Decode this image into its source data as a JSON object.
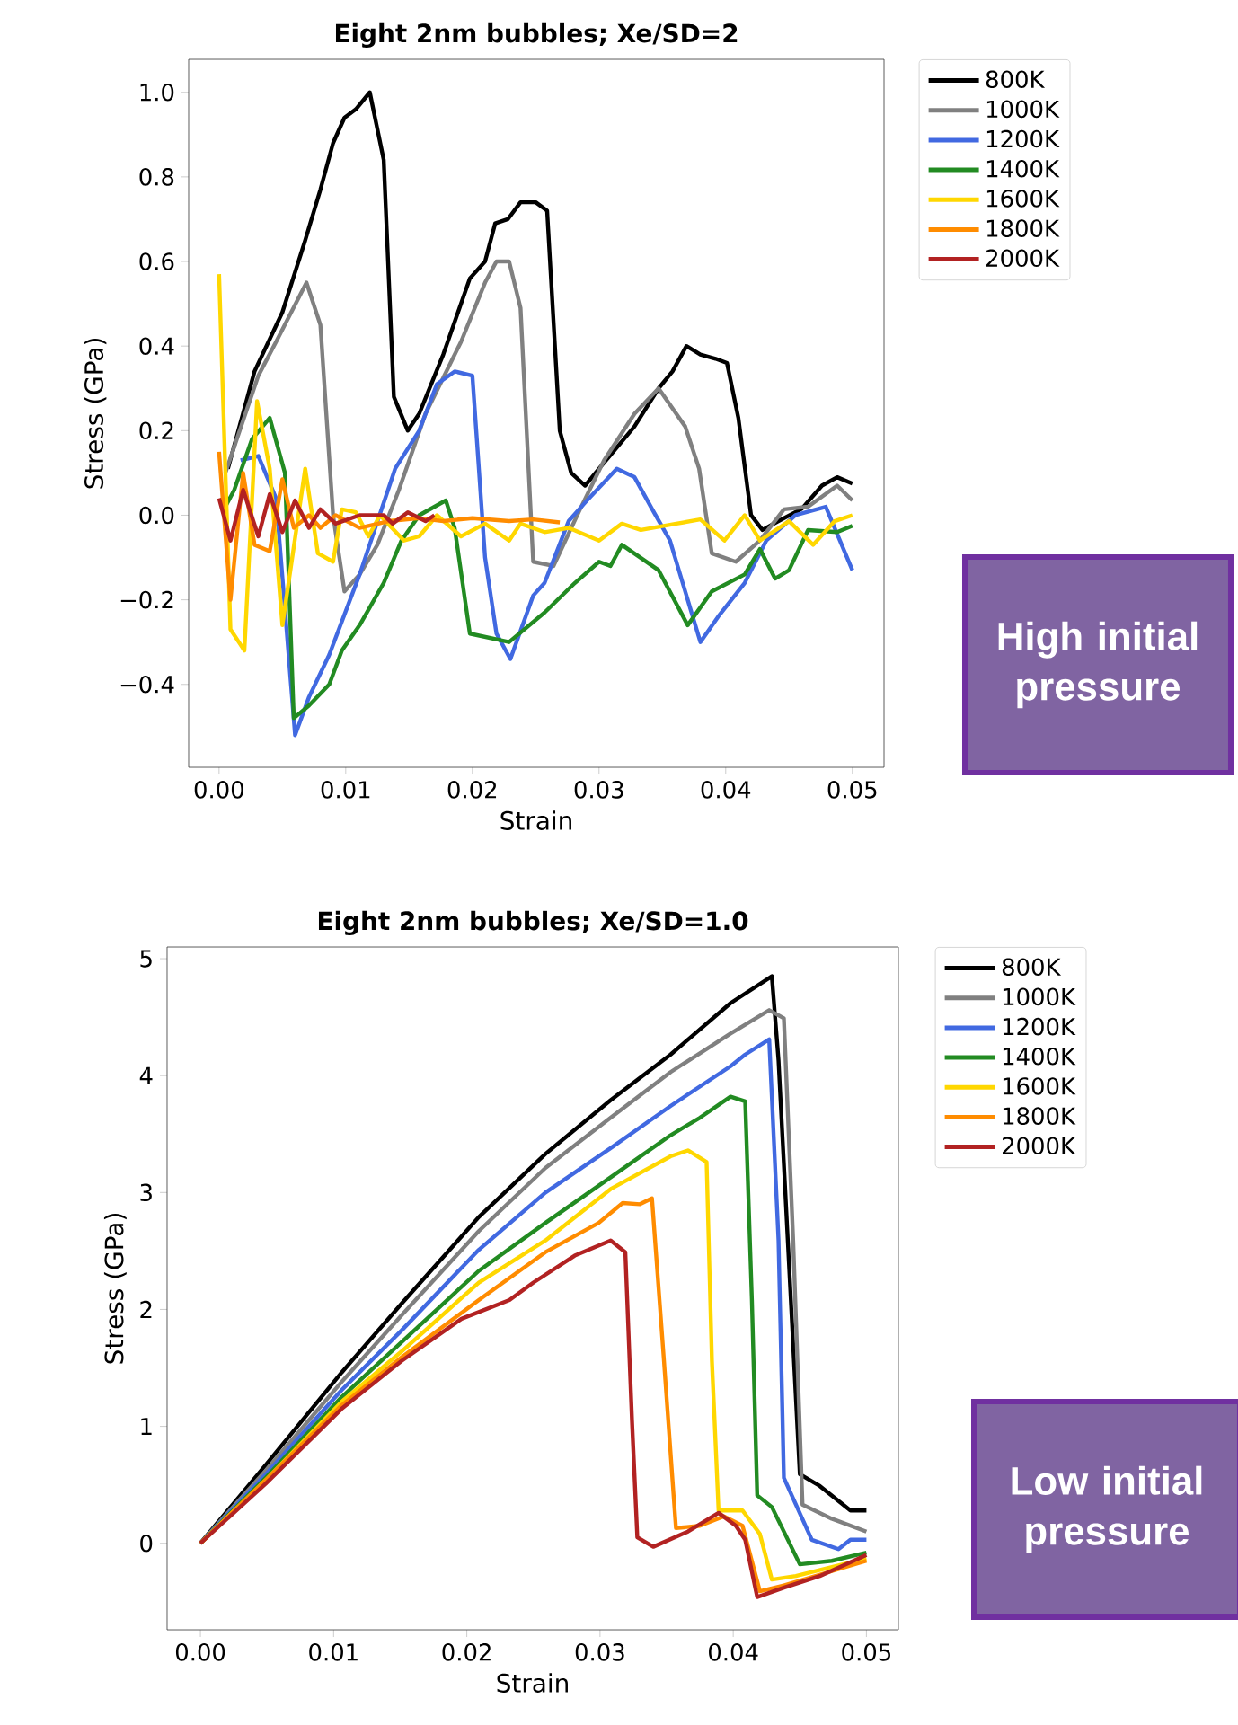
{
  "chart_data": [
    {
      "type": "line",
      "title": "Eight 2nm bubbles; Xe/SD=2",
      "xlabel": "Strain",
      "ylabel": "Stress (GPa)",
      "legend": "right",
      "xlim": [
        -0.0024,
        0.0525
      ],
      "ylim": [
        -0.596,
        1.078
      ],
      "xticks": [
        {
          "value": 0,
          "label": "0.00"
        },
        {
          "value": 0.01,
          "label": "0.01"
        },
        {
          "value": 0.02,
          "label": "0.02"
        },
        {
          "value": 0.03,
          "label": "0.03"
        },
        {
          "value": 0.04,
          "label": "0.04"
        },
        {
          "value": 0.05,
          "label": "0.05"
        }
      ],
      "yticks": [
        {
          "value": -0.4,
          "label": "−0.4"
        },
        {
          "value": -0.2,
          "label": "−0.2"
        },
        {
          "value": 0,
          "label": "0.0"
        },
        {
          "value": 0.2,
          "label": "0.2"
        },
        {
          "value": 0.4,
          "label": "0.4"
        },
        {
          "value": 0.6,
          "label": "0.6"
        },
        {
          "value": 0.8,
          "label": "0.8"
        },
        {
          "value": 1.0,
          "label": "1.0"
        }
      ],
      "annotations": [
        "High initial pressure"
      ],
      "series": [
        {
          "name": "800K",
          "color": "#000000",
          "x": [
            0.0007,
            0.0028,
            0.005,
            0.0068,
            0.008,
            0.009,
            0.0099,
            0.0108,
            0.0119,
            0.013,
            0.0138,
            0.0149,
            0.0158,
            0.0177,
            0.0198,
            0.021,
            0.0218,
            0.0228,
            0.0238,
            0.025,
            0.0259,
            0.0269,
            0.0278,
            0.0289,
            0.03,
            0.0328,
            0.0347,
            0.0358,
            0.0369,
            0.038,
            0.0392,
            0.0401,
            0.041,
            0.042,
            0.0429,
            0.0441,
            0.046,
            0.0476,
            0.0488,
            0.05
          ],
          "values": [
            0.11,
            0.34,
            0.48,
            0.65,
            0.77,
            0.88,
            0.94,
            0.96,
            1.0,
            0.84,
            0.28,
            0.2,
            0.24,
            0.38,
            0.56,
            0.6,
            0.69,
            0.7,
            0.74,
            0.74,
            0.72,
            0.2,
            0.1,
            0.07,
            0.11,
            0.21,
            0.3,
            0.34,
            0.4,
            0.38,
            0.37,
            0.36,
            0.23,
            0.0,
            -0.035,
            -0.015,
            0.015,
            0.07,
            0.09,
            0.075
          ]
        },
        {
          "name": "1000K",
          "color": "#808080",
          "x": [
            0.0005,
            0.0031,
            0.0045,
            0.0069,
            0.008,
            0.009,
            0.0099,
            0.0111,
            0.0125,
            0.0142,
            0.0163,
            0.0191,
            0.021,
            0.0219,
            0.0229,
            0.0238,
            0.0248,
            0.0264,
            0.0285,
            0.0304,
            0.0328,
            0.0347,
            0.0368,
            0.0379,
            0.0389,
            0.0408,
            0.0427,
            0.0446,
            0.0465,
            0.0488,
            0.05
          ],
          "values": [
            0.1,
            0.33,
            0.41,
            0.55,
            0.45,
            0.0,
            -0.18,
            -0.14,
            -0.07,
            0.06,
            0.24,
            0.41,
            0.55,
            0.6,
            0.6,
            0.49,
            -0.11,
            -0.12,
            0.014,
            0.13,
            0.24,
            0.3,
            0.21,
            0.11,
            -0.09,
            -0.11,
            -0.06,
            0.014,
            0.02,
            0.07,
            0.035
          ]
        },
        {
          "name": "1200K",
          "color": "#4169e1",
          "x": [
            0.0017,
            0.0031,
            0.0045,
            0.006,
            0.0071,
            0.0087,
            0.0111,
            0.0139,
            0.0158,
            0.0172,
            0.0186,
            0.02,
            0.021,
            0.0219,
            0.023,
            0.0248,
            0.0257,
            0.0276,
            0.0292,
            0.0314,
            0.0328,
            0.0342,
            0.0356,
            0.038,
            0.0394,
            0.0415,
            0.0432,
            0.0455,
            0.0479,
            0.0486,
            0.05
          ],
          "values": [
            0.13,
            0.14,
            0.04,
            -0.52,
            -0.43,
            -0.33,
            -0.14,
            0.11,
            0.2,
            0.31,
            0.34,
            0.33,
            -0.1,
            -0.28,
            -0.34,
            -0.19,
            -0.16,
            -0.014,
            0.04,
            0.11,
            0.09,
            0.014,
            -0.06,
            -0.3,
            -0.24,
            -0.16,
            -0.06,
            0.0,
            0.02,
            -0.03,
            -0.13
          ]
        },
        {
          "name": "1400K",
          "color": "#228b22",
          "x": [
            0.0005,
            0.0012,
            0.0026,
            0.004,
            0.0052,
            0.0059,
            0.0071,
            0.0087,
            0.0097,
            0.0111,
            0.013,
            0.0144,
            0.0158,
            0.0179,
            0.0186,
            0.0198,
            0.0229,
            0.0257,
            0.0281,
            0.03,
            0.0309,
            0.0318,
            0.0347,
            0.037,
            0.0389,
            0.0415,
            0.0427,
            0.0439,
            0.045,
            0.0465,
            0.0488,
            0.05
          ],
          "values": [
            0.02,
            0.06,
            0.18,
            0.23,
            0.1,
            -0.48,
            -0.45,
            -0.4,
            -0.32,
            -0.26,
            -0.16,
            -0.06,
            0.0,
            0.035,
            -0.03,
            -0.28,
            -0.3,
            -0.23,
            -0.16,
            -0.11,
            -0.12,
            -0.07,
            -0.13,
            -0.26,
            -0.18,
            -0.14,
            -0.08,
            -0.15,
            -0.13,
            -0.035,
            -0.04,
            -0.025
          ]
        },
        {
          "name": "1600K",
          "color": "#ffd700",
          "x": [
            0.0,
            0.0009,
            0.002,
            0.003,
            0.004,
            0.005,
            0.0068,
            0.0078,
            0.009,
            0.0097,
            0.0108,
            0.0118,
            0.0127,
            0.0146,
            0.0158,
            0.0172,
            0.0191,
            0.021,
            0.0229,
            0.0238,
            0.0257,
            0.0276,
            0.03,
            0.0318,
            0.0333,
            0.0361,
            0.038,
            0.0399,
            0.0415,
            0.0427,
            0.045,
            0.0469,
            0.0486,
            0.05
          ],
          "values": [
            0.57,
            -0.27,
            -0.32,
            0.27,
            0.11,
            -0.26,
            0.11,
            -0.09,
            -0.11,
            0.014,
            0.007,
            -0.05,
            0.0,
            -0.06,
            -0.05,
            0.0,
            -0.05,
            -0.02,
            -0.06,
            -0.02,
            -0.04,
            -0.03,
            -0.06,
            -0.02,
            -0.035,
            -0.02,
            -0.01,
            -0.06,
            0.0,
            -0.06,
            -0.014,
            -0.07,
            -0.014,
            0.0
          ]
        },
        {
          "name": "1800K",
          "color": "#ff8c00",
          "x": [
            0.0,
            0.0009,
            0.0019,
            0.0028,
            0.004,
            0.005,
            0.0059,
            0.0071,
            0.008,
            0.0092,
            0.0111,
            0.0134,
            0.0158,
            0.0177,
            0.02,
            0.0229,
            0.0248,
            0.0269
          ],
          "values": [
            0.15,
            -0.2,
            0.1,
            -0.07,
            -0.085,
            0.085,
            -0.03,
            0.0,
            -0.03,
            0.0,
            -0.03,
            -0.014,
            -0.007,
            -0.014,
            -0.007,
            -0.014,
            -0.01,
            -0.017
          ]
        },
        {
          "name": "2000K",
          "color": "#b22222",
          "x": [
            0.0,
            0.0009,
            0.0019,
            0.0031,
            0.004,
            0.005,
            0.006,
            0.0071,
            0.008,
            0.0092,
            0.0111,
            0.013,
            0.0137,
            0.0149,
            0.0163,
            0.017
          ],
          "values": [
            0.04,
            -0.06,
            0.06,
            -0.05,
            0.05,
            -0.04,
            0.035,
            -0.03,
            0.014,
            -0.02,
            0.0,
            0.0,
            -0.02,
            0.007,
            -0.014,
            0.0
          ]
        }
      ]
    },
    {
      "type": "line",
      "title": "Eight 2nm bubbles; Xe/SD=1.0",
      "xlabel": "Strain",
      "ylabel": "Stress (GPa)",
      "legend": "right",
      "xlim": [
        -0.0025,
        0.0524
      ],
      "ylim": [
        -0.74,
        5.1
      ],
      "xticks": [
        {
          "value": 0,
          "label": "0.00"
        },
        {
          "value": 0.01,
          "label": "0.01"
        },
        {
          "value": 0.02,
          "label": "0.02"
        },
        {
          "value": 0.03,
          "label": "0.03"
        },
        {
          "value": 0.04,
          "label": "0.04"
        },
        {
          "value": 0.05,
          "label": "0.05"
        }
      ],
      "yticks": [
        0,
        1,
        2,
        3,
        4,
        5
      ],
      "annotations": [
        "Low initial pressure"
      ],
      "series": [
        {
          "name": "800K",
          "color": "#000000",
          "x": [
            0.0,
            0.0049,
            0.0106,
            0.0151,
            0.0209,
            0.0259,
            0.0308,
            0.0353,
            0.0398,
            0.0429,
            0.0434,
            0.045,
            0.0465,
            0.0488,
            0.05
          ],
          "values": [
            0.0,
            0.67,
            1.46,
            2.05,
            2.79,
            3.33,
            3.79,
            4.18,
            4.62,
            4.85,
            4.13,
            0.59,
            0.49,
            0.28,
            0.28
          ]
        },
        {
          "name": "1000K",
          "color": "#808080",
          "x": [
            0.0,
            0.0049,
            0.0106,
            0.0151,
            0.0209,
            0.0259,
            0.0308,
            0.0353,
            0.0398,
            0.0427,
            0.0438,
            0.0445,
            0.0452,
            0.0474,
            0.05
          ],
          "values": [
            0.0,
            0.62,
            1.38,
            1.95,
            2.67,
            3.21,
            3.64,
            4.03,
            4.36,
            4.56,
            4.49,
            2.59,
            0.33,
            0.21,
            0.1
          ]
        },
        {
          "name": "1200K",
          "color": "#4169e1",
          "x": [
            0.0,
            0.0049,
            0.0106,
            0.0151,
            0.0209,
            0.0259,
            0.0308,
            0.0353,
            0.0398,
            0.0409,
            0.0427,
            0.0434,
            0.0438,
            0.0459,
            0.0479,
            0.0488,
            0.05
          ],
          "values": [
            0.0,
            0.59,
            1.31,
            1.82,
            2.51,
            3.0,
            3.38,
            3.74,
            4.08,
            4.18,
            4.31,
            2.59,
            0.56,
            0.03,
            -0.05,
            0.03,
            0.03
          ]
        },
        {
          "name": "1400K",
          "color": "#228b22",
          "x": [
            0.0,
            0.0049,
            0.0106,
            0.0151,
            0.0209,
            0.0259,
            0.0308,
            0.0353,
            0.0375,
            0.0398,
            0.0409,
            0.0414,
            0.0418,
            0.0429,
            0.045,
            0.0474,
            0.05
          ],
          "values": [
            0.0,
            0.56,
            1.25,
            1.72,
            2.33,
            2.74,
            3.13,
            3.49,
            3.64,
            3.82,
            3.78,
            2.08,
            0.41,
            0.31,
            -0.18,
            -0.15,
            -0.08
          ]
        },
        {
          "name": "1600K",
          "color": "#ffd700",
          "x": [
            0.0,
            0.0049,
            0.0106,
            0.0151,
            0.0209,
            0.0259,
            0.0308,
            0.0353,
            0.0366,
            0.038,
            0.0384,
            0.0389,
            0.0407,
            0.042,
            0.0429,
            0.0447,
            0.05
          ],
          "values": [
            0.0,
            0.54,
            1.21,
            1.64,
            2.23,
            2.59,
            3.03,
            3.31,
            3.36,
            3.26,
            1.56,
            0.28,
            0.28,
            0.08,
            -0.31,
            -0.28,
            -0.13
          ]
        },
        {
          "name": "1800K",
          "color": "#ff8c00",
          "x": [
            0.0,
            0.0049,
            0.0106,
            0.0151,
            0.0209,
            0.0259,
            0.0299,
            0.0317,
            0.033,
            0.0339,
            0.0348,
            0.0357,
            0.0375,
            0.0393,
            0.0407,
            0.042,
            0.0438,
            0.05
          ],
          "values": [
            0.0,
            0.54,
            1.18,
            1.59,
            2.08,
            2.49,
            2.74,
            2.91,
            2.9,
            2.95,
            1.56,
            0.13,
            0.15,
            0.23,
            0.15,
            -0.41,
            -0.36,
            -0.15
          ]
        },
        {
          "name": "2000K",
          "color": "#b22222",
          "x": [
            0.0,
            0.0049,
            0.0106,
            0.0151,
            0.0196,
            0.0232,
            0.025,
            0.0281,
            0.0308,
            0.0319,
            0.0324,
            0.0328,
            0.034,
            0.0366,
            0.0389,
            0.0402,
            0.0409,
            0.0418,
            0.0438,
            0.0465,
            0.05
          ],
          "values": [
            0.0,
            0.51,
            1.15,
            1.56,
            1.92,
            2.08,
            2.23,
            2.46,
            2.59,
            2.49,
            1.05,
            0.05,
            -0.03,
            0.1,
            0.26,
            0.15,
            0.03,
            -0.46,
            -0.38,
            -0.28,
            -0.1
          ]
        }
      ]
    }
  ]
}
